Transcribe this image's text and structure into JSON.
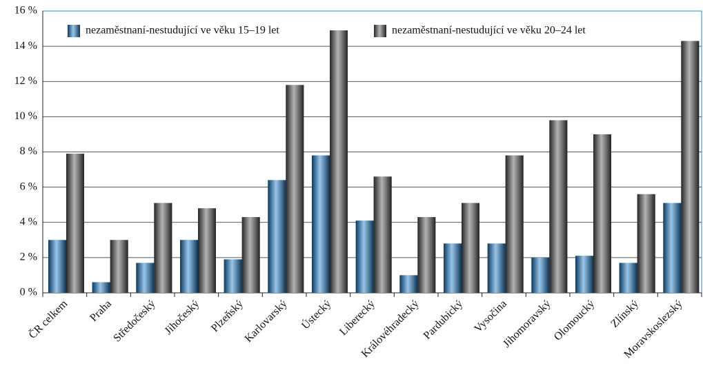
{
  "chart_data": {
    "type": "bar",
    "categories": [
      "ČR celkem",
      "Praha",
      "Středočeský",
      "Jihočeský",
      "Plzeňský",
      "Karlovarský",
      "Ústecký",
      "Liberecký",
      "Královéhradecký",
      "Pardubický",
      "Vysočina",
      "Jihomoravský",
      "Olomoucký",
      "Zlínský",
      "Moravskoslezský"
    ],
    "series": [
      {
        "name": "nezaměstnaní-nestudující ve věku 15–19 let",
        "color": "#1a7fd0",
        "values": [
          3.0,
          0.6,
          1.7,
          3.0,
          1.9,
          6.4,
          7.8,
          4.1,
          1.0,
          2.8,
          2.8,
          2.0,
          2.1,
          1.7,
          5.1
        ]
      },
      {
        "name": "nezaměstnaní-nestudující ve věku 20–24 let",
        "color": "#555555",
        "values": [
          7.9,
          3.0,
          5.1,
          4.8,
          4.3,
          11.8,
          14.9,
          6.6,
          4.3,
          5.1,
          7.8,
          9.8,
          9.0,
          5.6,
          14.3
        ]
      }
    ],
    "ylim": [
      0,
      16
    ],
    "yticks": [
      {
        "value": 0,
        "label": "0 %"
      },
      {
        "value": 2,
        "label": "2 %"
      },
      {
        "value": 4,
        "label": "4 %"
      },
      {
        "value": 6,
        "label": "6 %"
      },
      {
        "value": 8,
        "label": "8 %"
      },
      {
        "value": 10,
        "label": "10 %"
      },
      {
        "value": 12,
        "label": "12 %"
      },
      {
        "value": 14,
        "label": "14 %"
      },
      {
        "value": 16,
        "label": "16 %"
      }
    ],
    "grid": true,
    "legend": "top-left"
  }
}
